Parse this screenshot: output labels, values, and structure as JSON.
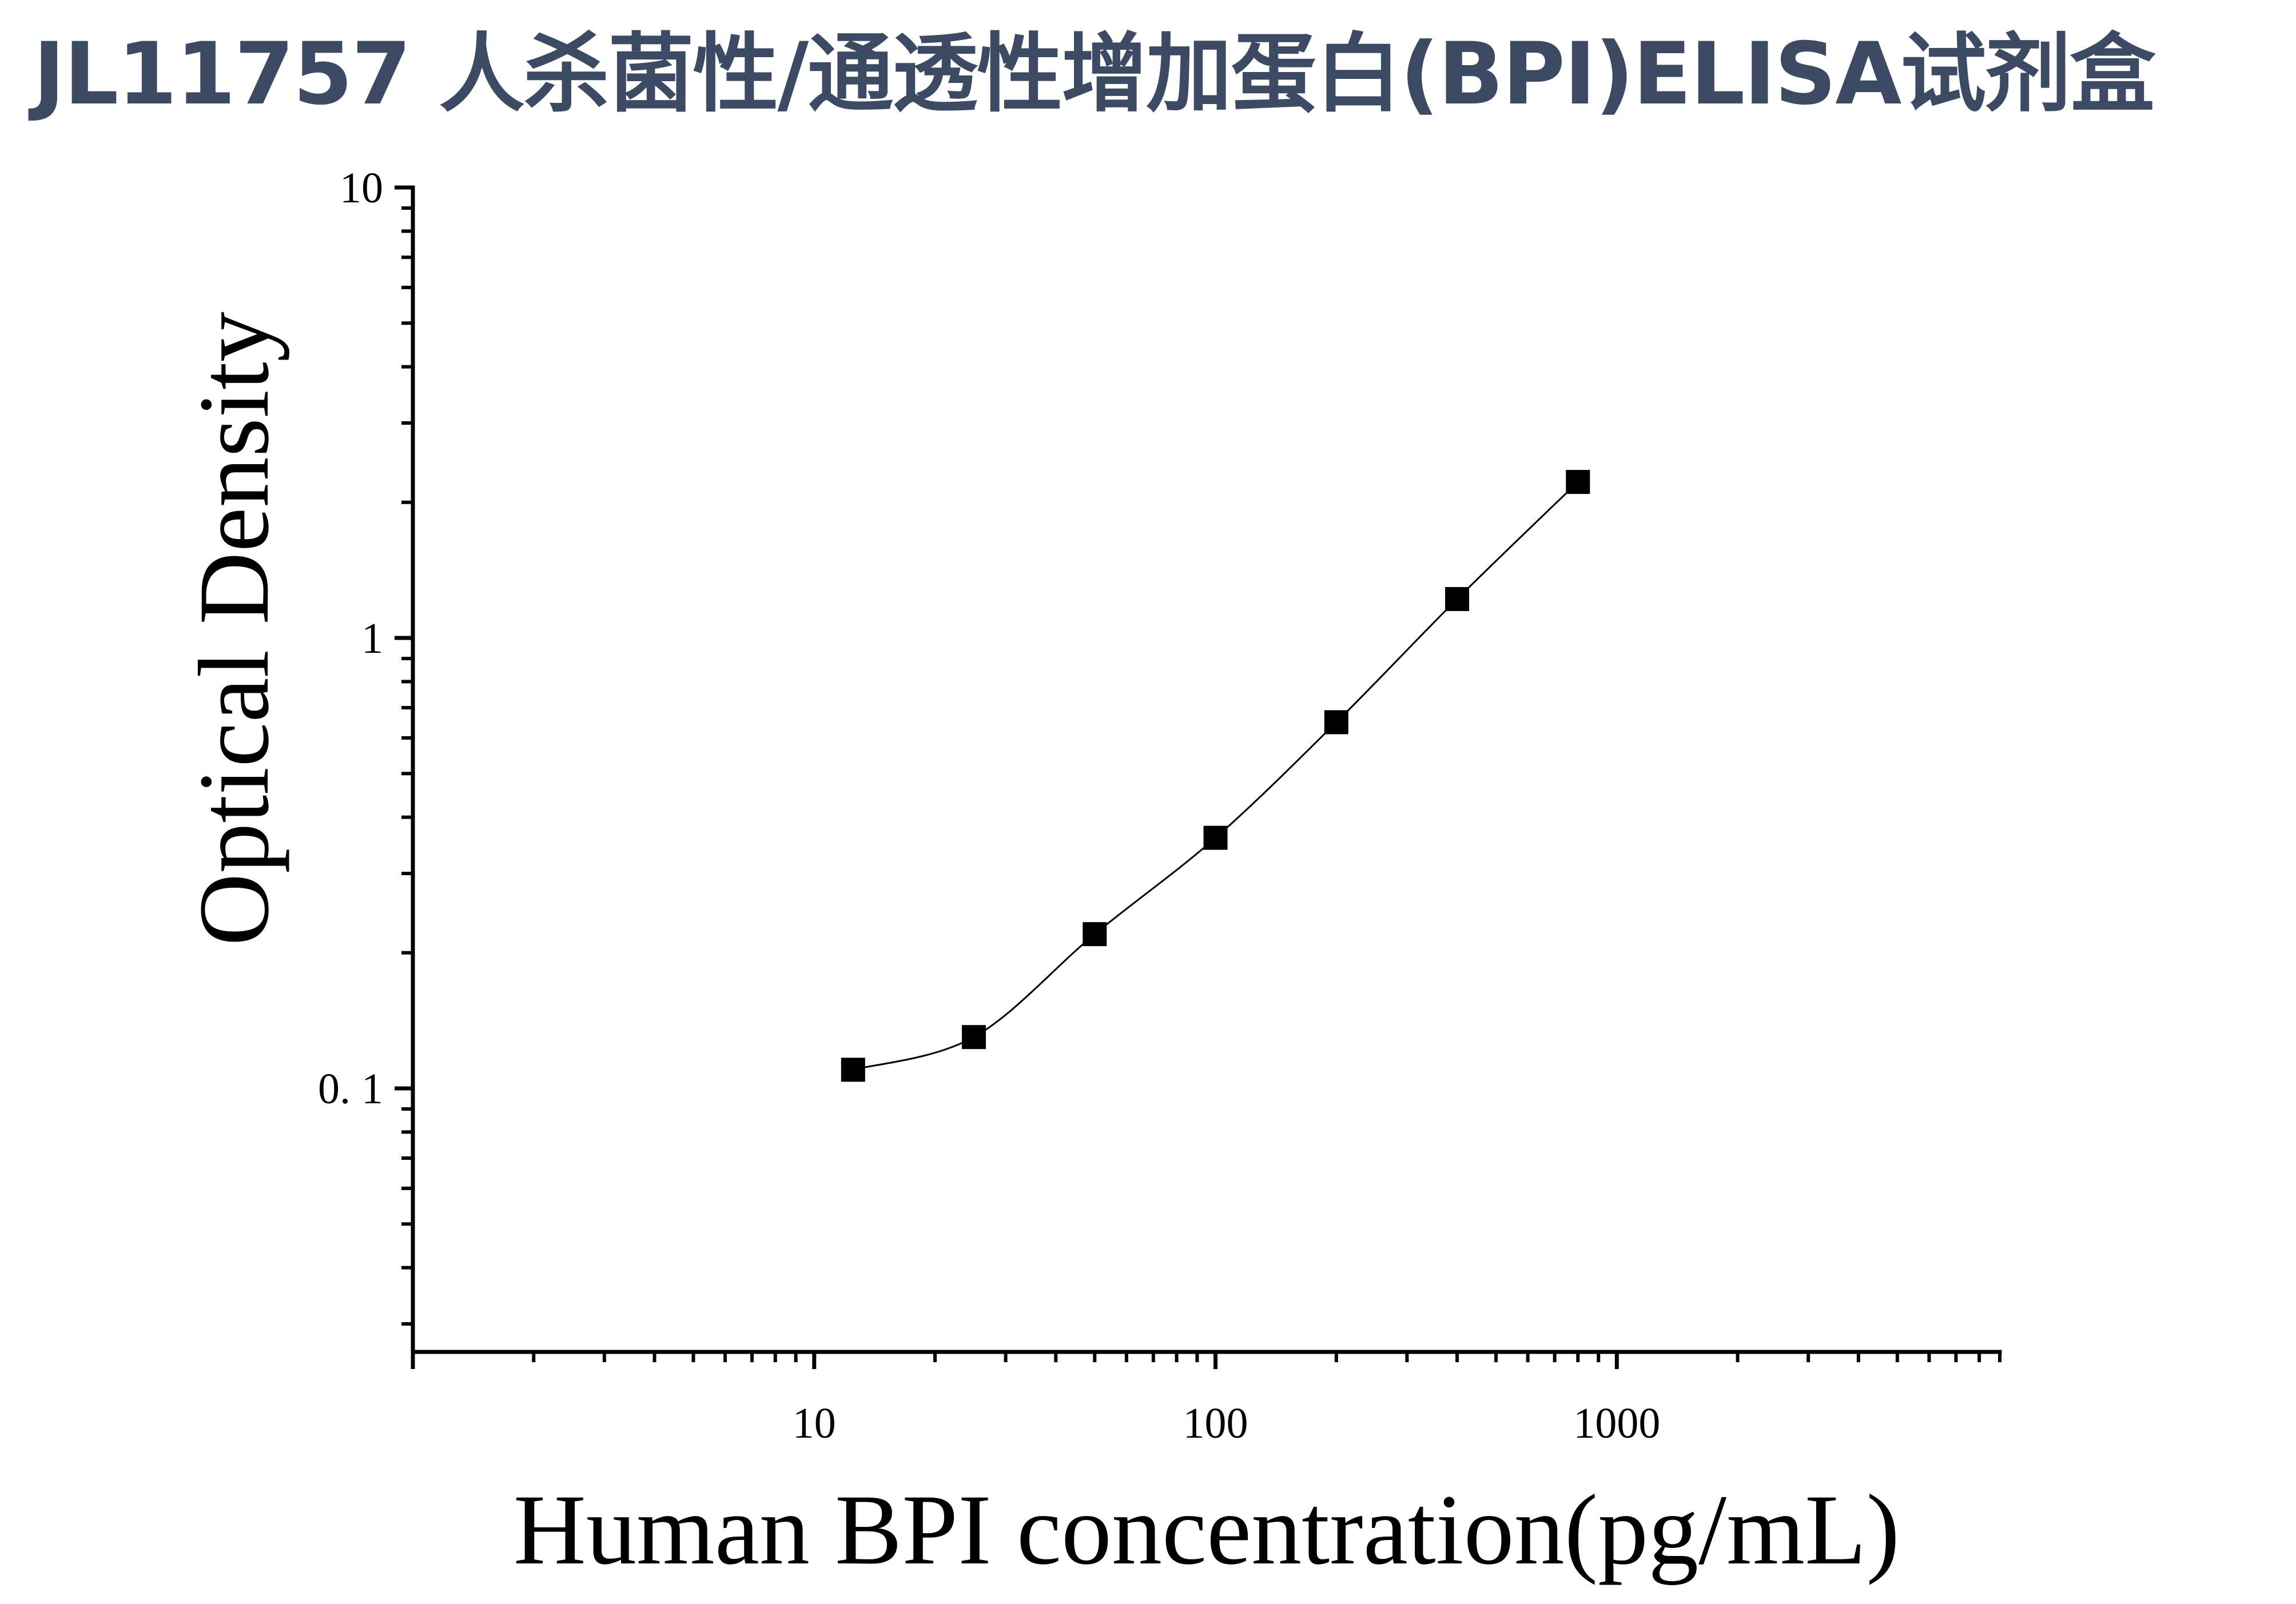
{
  "title": "JL11757 人杀菌性/通透性增加蛋白(BPI)ELISA试剂盒",
  "chart_data": {
    "type": "scatter",
    "title": "JL11757 人杀菌性/通透性增加蛋白(BPI)ELISA试剂盒",
    "xlabel": "Human BPI concentration(pg/mL)",
    "ylabel": "Optical Density",
    "x_scale": "log",
    "y_scale": "log",
    "xlim": [
      1,
      9000
    ],
    "ylim": [
      0.026,
      10
    ],
    "x_ticks": [
      10,
      100,
      1000
    ],
    "x_tick_labels": [
      "10",
      "100",
      "1000"
    ],
    "y_ticks": [
      0.1,
      1,
      10
    ],
    "y_tick_labels": [
      "0. 1",
      "1",
      "10"
    ],
    "grid": false,
    "legend": "none",
    "marker": "square",
    "color": "#000000",
    "series": [
      {
        "x": [
          12.5,
          25,
          50,
          100,
          200,
          400,
          800
        ],
        "y": [
          0.11,
          0.13,
          0.22,
          0.36,
          0.65,
          1.22,
          2.22
        ],
        "fit_curve": true
      }
    ]
  }
}
